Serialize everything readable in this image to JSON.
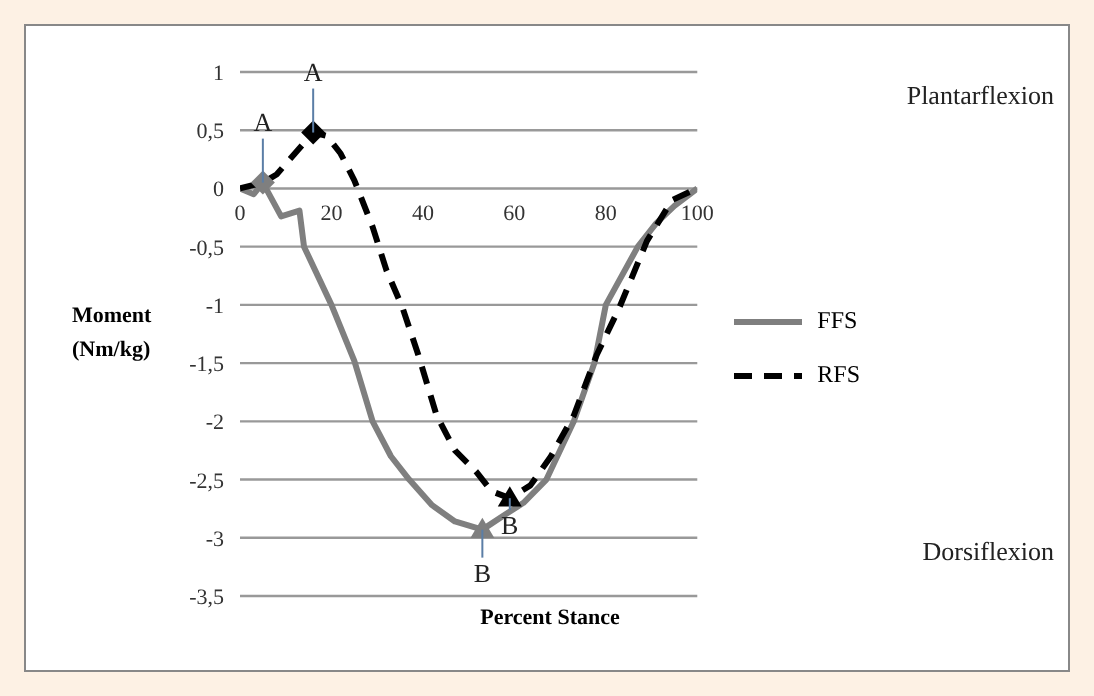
{
  "chart_data": {
    "type": "line",
    "xlabel": "Percent Stance",
    "ylabel": "Moment (Nm/kg)",
    "xlim": [
      0,
      100
    ],
    "xticks": [
      0,
      20,
      40,
      60,
      80,
      100
    ],
    "ylim": [
      -3.5,
      1
    ],
    "yticks": [
      {
        "value": 1,
        "label": "1"
      },
      {
        "value": 0.5,
        "label": "0,5"
      },
      {
        "value": 0,
        "label": "0"
      },
      {
        "value": -0.5,
        "label": "-0,5"
      },
      {
        "value": -1,
        "label": "-1"
      },
      {
        "value": -1.5,
        "label": "-1,5"
      },
      {
        "value": -2,
        "label": "-2"
      },
      {
        "value": -2.5,
        "label": "-2,5"
      },
      {
        "value": -3,
        "label": "-3"
      },
      {
        "value": -3.5,
        "label": "-3,5"
      }
    ],
    "grid": "y",
    "legend": "right",
    "marker": "none",
    "series": [
      {
        "name": "FFS",
        "color": "#7f7f7f",
        "line_style": "solid",
        "x": [
          0,
          3,
          5,
          9,
          13,
          14,
          20,
          25,
          29,
          33,
          37,
          42,
          47,
          53,
          58,
          62,
          67,
          73,
          77.5,
          80,
          87,
          91,
          95,
          100
        ],
        "values": [
          0,
          -0.05,
          0.05,
          -0.24,
          -0.19,
          -0.5,
          -1.0,
          -1.48,
          -2.0,
          -2.3,
          -2.5,
          -2.72,
          -2.86,
          -2.93,
          -2.8,
          -2.7,
          -2.5,
          -2.0,
          -1.5,
          -1.0,
          -0.5,
          -0.3,
          -0.15,
          0
        ]
      },
      {
        "name": "RFS",
        "color": "#000000",
        "line_style": "dashed",
        "x": [
          0,
          5,
          8,
          12,
          16,
          19,
          22,
          25,
          29,
          32,
          35.5,
          39,
          43,
          47,
          51.6,
          55,
          59,
          63.5,
          68,
          73,
          78,
          83,
          89,
          94.5,
          100
        ],
        "values": [
          0,
          0.05,
          0.12,
          0.3,
          0.48,
          0.45,
          0.3,
          0.07,
          -0.33,
          -0.7,
          -1.02,
          -1.43,
          -1.95,
          -2.25,
          -2.43,
          -2.6,
          -2.66,
          -2.55,
          -2.3,
          -1.95,
          -1.43,
          -1.02,
          -0.45,
          -0.1,
          0
        ]
      },
      {
        "type": "scatter",
        "marker": "diamond",
        "x": [
          5,
          16
        ],
        "values": [
          0.05,
          0.48
        ],
        "colors": [
          "#7f7f7f",
          "#000000"
        ]
      },
      {
        "type": "scatter",
        "marker": "triangle",
        "x": [
          53,
          59
        ],
        "values": [
          -2.93,
          -2.66
        ],
        "colors": [
          "#7f7f7f",
          "#000000"
        ]
      }
    ],
    "annotations": [
      "Plantarflexion",
      "Dorsiflexion",
      {
        "text": "A",
        "x": 5,
        "y": 0.05
      },
      {
        "text": "A",
        "x": 16,
        "y": 0.48
      },
      {
        "text": "B",
        "x": 53,
        "y": -2.93
      },
      {
        "text": "B",
        "x": 59,
        "y": -2.66
      }
    ]
  }
}
